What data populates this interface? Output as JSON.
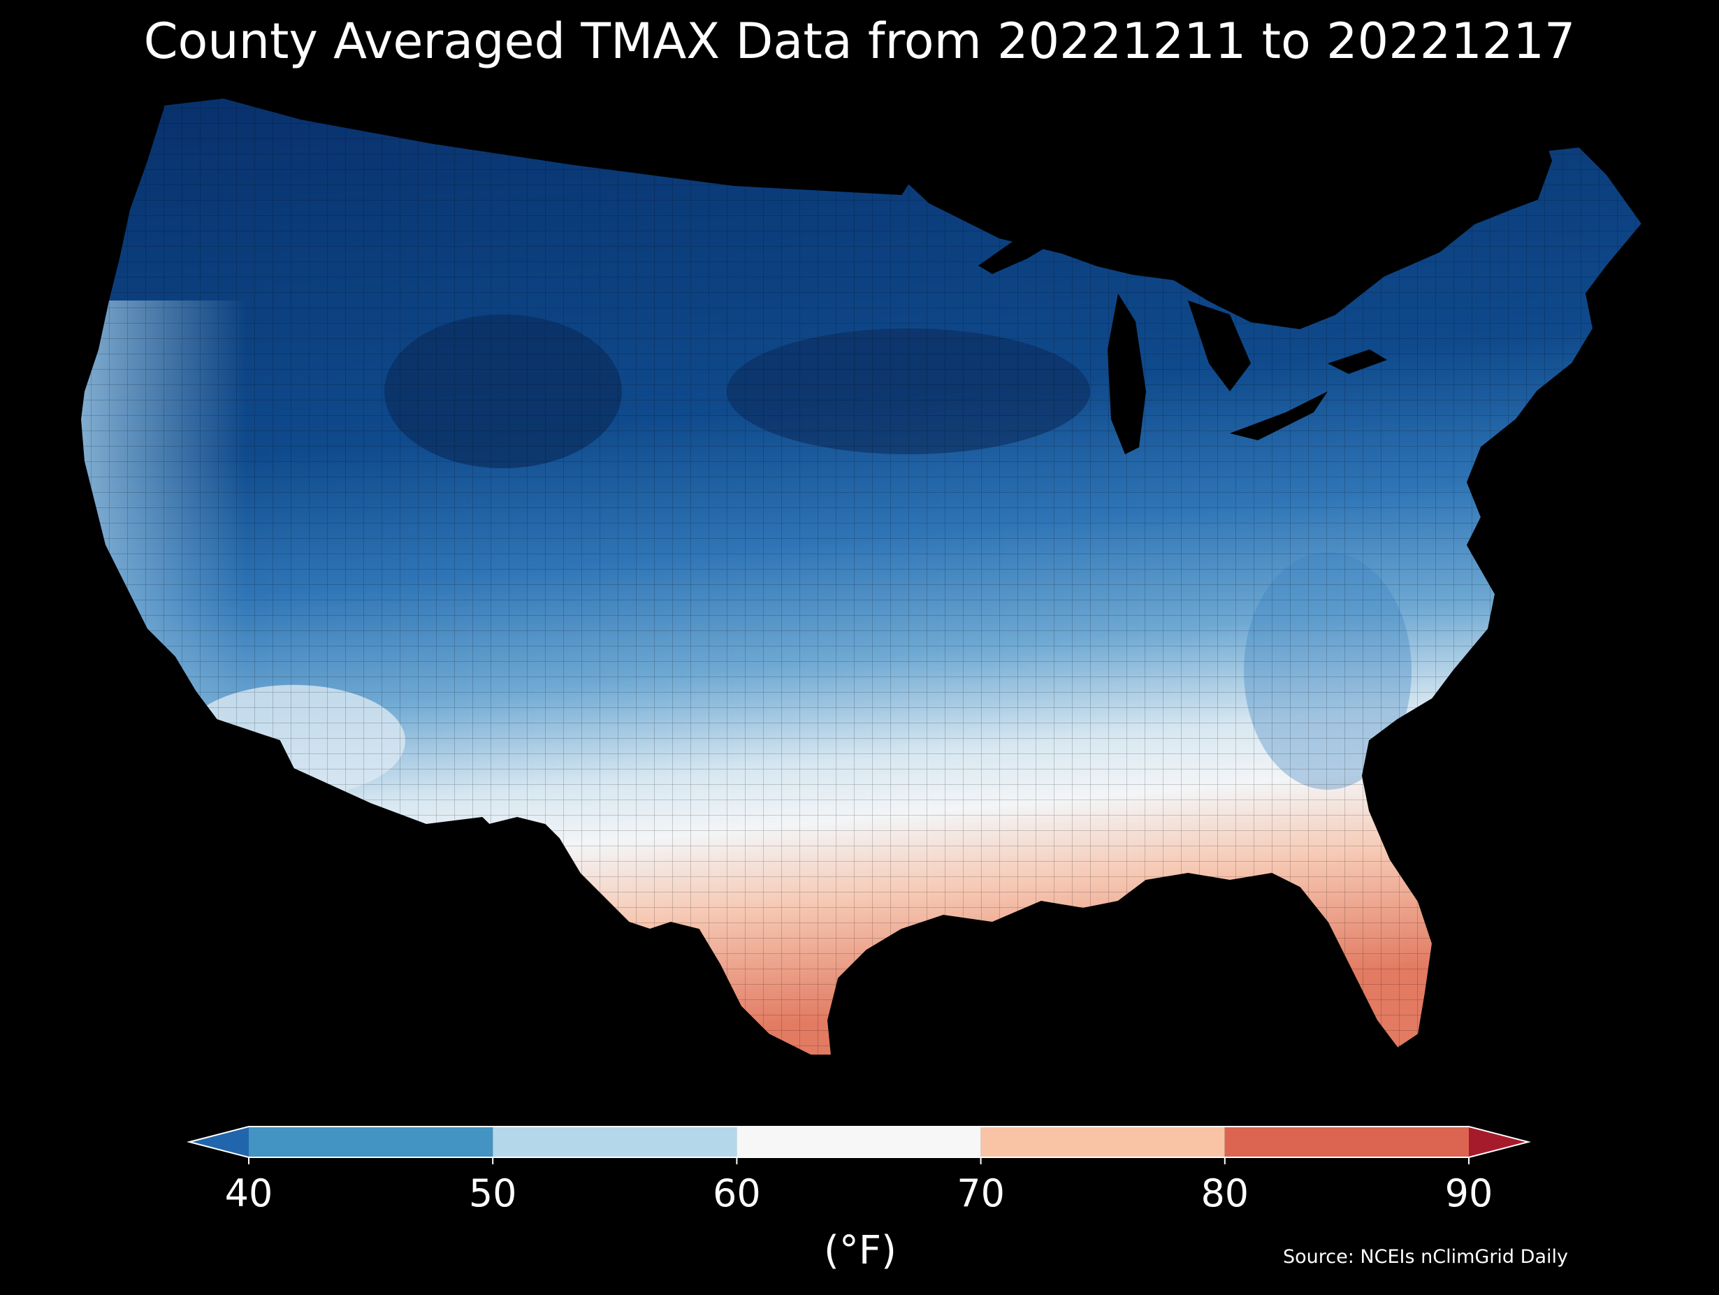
{
  "title": "County Averaged TMAX Data from 20221211 to 20221217",
  "source": "Source: NCEIs nClimGrid Daily",
  "colorbar": {
    "unit_label": "(°F)",
    "ticks": [
      "40",
      "50",
      "60",
      "70",
      "80",
      "90"
    ],
    "min": 40,
    "max": 90,
    "extend": "both",
    "bins": [
      {
        "from": 40,
        "to": 50,
        "color": "#4393c3"
      },
      {
        "from": 50,
        "to": 60,
        "color": "#b5d7ea"
      },
      {
        "from": 60,
        "to": 70,
        "color": "#f7f7f7"
      },
      {
        "from": 70,
        "to": 80,
        "color": "#f9c3a6"
      },
      {
        "from": 80,
        "to": 90,
        "color": "#dc6552"
      }
    ],
    "under_color": "#2166ac",
    "over_color": "#a61b2c"
  },
  "map": {
    "region": "contiguous United States",
    "cold_color": "#08306b",
    "mid_color": "#4e94c9",
    "neutral_color": "#f3f5f7",
    "warm_color": "#e9826b"
  }
}
